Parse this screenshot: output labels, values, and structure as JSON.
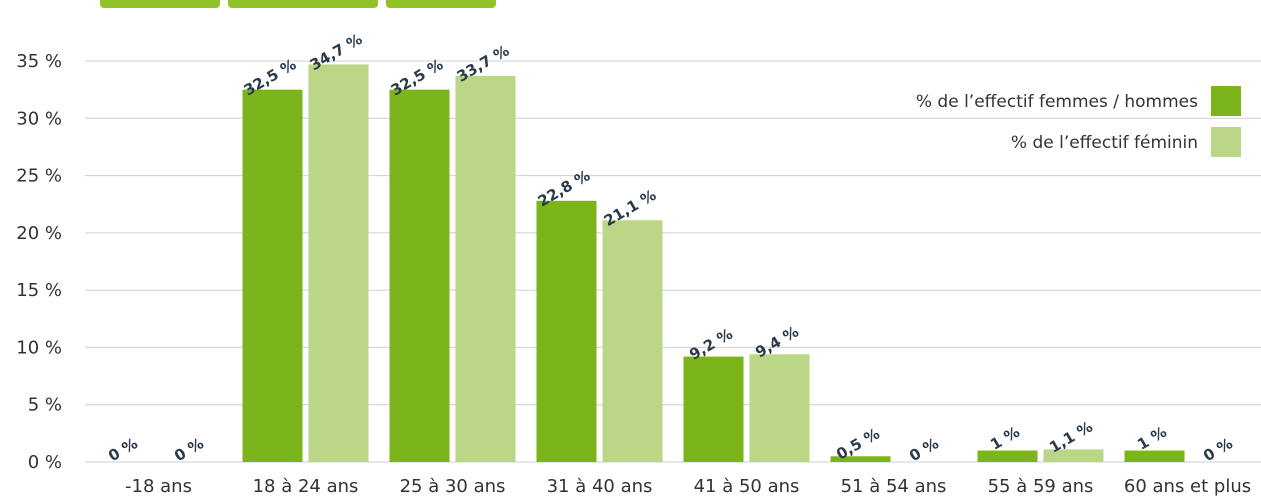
{
  "colors": {
    "series1": "#7cb41c",
    "series2": "#bad686",
    "labels": "#2b3a4a",
    "grid": "#cfcfcf"
  },
  "chart_data": {
    "type": "bar",
    "categories": [
      "-18 ans",
      "18 à 24 ans",
      "25 à 30 ans",
      "31 à 40 ans",
      "41 à 50 ans",
      "51 à 54 ans",
      "55 à 59 ans",
      "60 ans et plus"
    ],
    "series": [
      {
        "name": "% de l’effectif femmes / hommes",
        "values": [
          0,
          32.5,
          32.5,
          22.8,
          9.2,
          0.5,
          1,
          1
        ],
        "labels": [
          "0 %",
          "32,5 %",
          "32,5 %",
          "22,8 %",
          "9,2 %",
          "0,5 %",
          "1 %",
          "1 %"
        ]
      },
      {
        "name": "% de l’effectif féminin",
        "values": [
          0,
          34.7,
          33.7,
          21.1,
          9.4,
          0,
          1.1,
          0
        ],
        "labels": [
          "0 %",
          "34,7 %",
          "33,7 %",
          "21,1 %",
          "9,4 %",
          "0 %",
          "1,1 %",
          "0 %"
        ]
      }
    ],
    "yticks": [
      "0 %",
      "5 %",
      "10 %",
      "15 %",
      "20 %",
      "25 %",
      "30 %",
      "35 %"
    ],
    "ylim": [
      0,
      35
    ],
    "grid": true,
    "legend_position": "top-right"
  }
}
